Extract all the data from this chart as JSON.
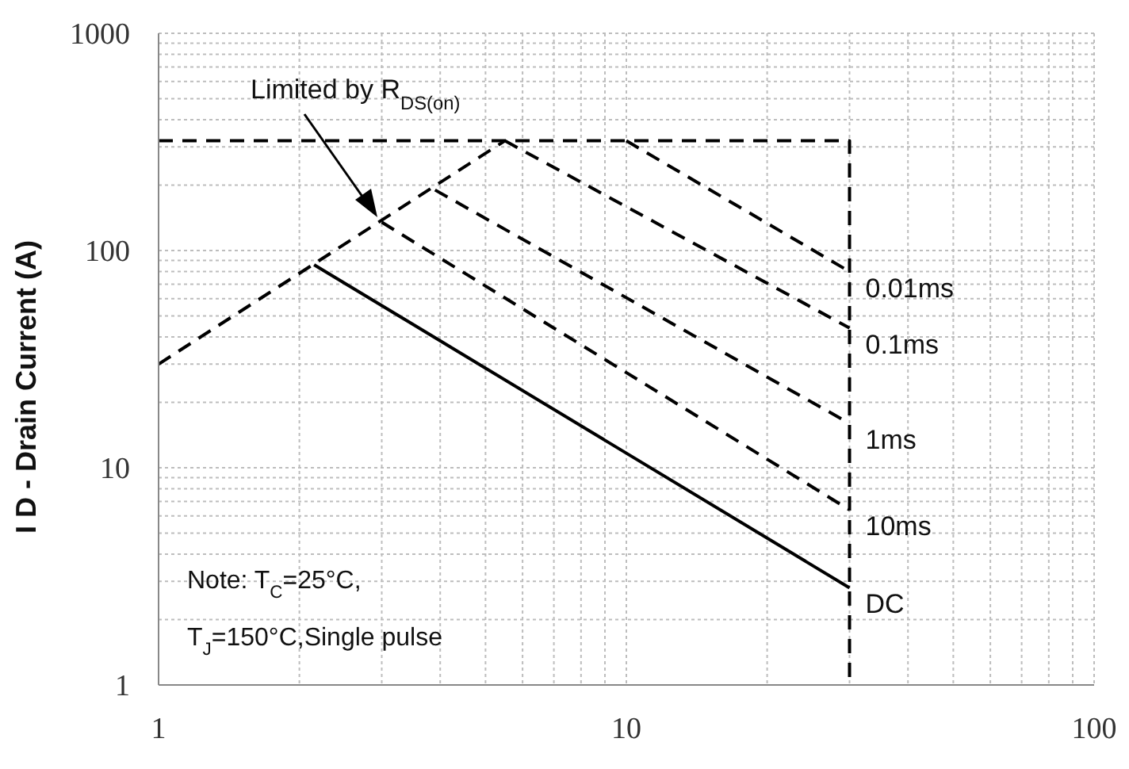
{
  "chart_data": {
    "type": "line",
    "ylabel": "I D - Drain Current (A)",
    "log": "xy",
    "xlim": [
      1,
      100
    ],
    "xticks": [
      1,
      10,
      100
    ],
    "ylim": [
      1,
      1000
    ],
    "yticks": [
      1,
      10,
      100,
      1000
    ],
    "grid": true,
    "marker": "none",
    "series": [
      {
        "color": "#000000",
        "line_style": "dashed",
        "x": [
          1,
          30,
          30
        ],
        "values": [
          320,
          320,
          1
        ]
      },
      {
        "color": "#000000",
        "line_style": "dashed",
        "x": [
          1,
          5.5
        ],
        "values": [
          30,
          320
        ]
      },
      {
        "name": "0.01ms",
        "color": "#000000",
        "line_style": "dashed",
        "x": [
          10,
          30
        ],
        "values": [
          320,
          80
        ]
      },
      {
        "name": "0.1ms",
        "color": "#000000",
        "line_style": "dashed",
        "x": [
          5.5,
          30
        ],
        "values": [
          320,
          44
        ]
      },
      {
        "name": "1ms",
        "color": "#000000",
        "line_style": "dashed",
        "x": [
          3.9,
          30
        ],
        "values": [
          190,
          16
        ]
      },
      {
        "name": "10ms",
        "color": "#000000",
        "line_style": "dashed",
        "x": [
          3,
          30
        ],
        "values": [
          135,
          6.4
        ]
      },
      {
        "name": "DC",
        "color": "#000000",
        "line_style": "solid",
        "x": [
          2.15,
          30
        ],
        "values": [
          86,
          2.8
        ]
      }
    ],
    "annotations": [
      "Limited by R$_{DS(on)}$",
      "Note: T$_{C}$=25°C,",
      "T$_{J}$=150°C,Single pulse"
    ]
  }
}
